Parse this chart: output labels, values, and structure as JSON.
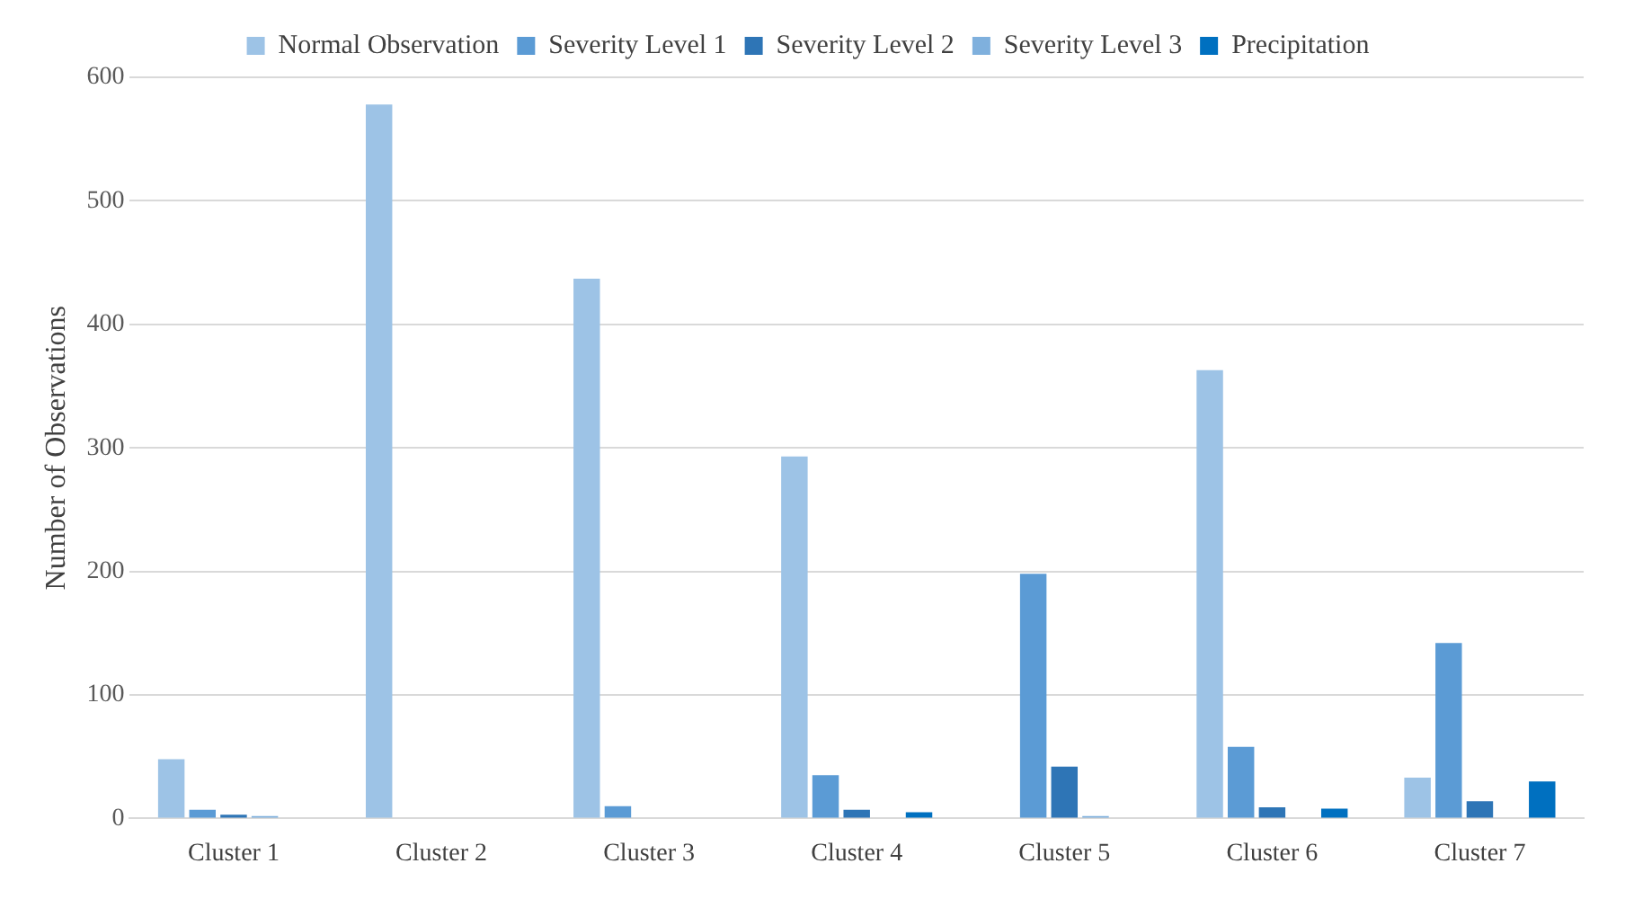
{
  "chart_data": {
    "type": "bar",
    "ylabel": "Number of Observations",
    "categories": [
      "Cluster 1",
      "Cluster 2",
      "Cluster 3",
      "Cluster 4",
      "Cluster 5",
      "Cluster 6",
      "Cluster 7"
    ],
    "series": [
      {
        "name": "Normal Observation",
        "color": "#9dc3e6",
        "values": [
          48,
          578,
          437,
          293,
          null,
          363,
          33
        ]
      },
      {
        "name": "Severity Level 1",
        "color": "#5b9bd5",
        "values": [
          7,
          null,
          10,
          35,
          198,
          58,
          142
        ]
      },
      {
        "name": "Severity Level 2",
        "color": "#2e75b6",
        "values": [
          3,
          null,
          null,
          7,
          42,
          9,
          14
        ]
      },
      {
        "name": "Severity Level 3",
        "color": "#7fb0dd",
        "values": [
          2,
          null,
          null,
          null,
          2,
          null,
          null
        ]
      },
      {
        "name": "Precipitation",
        "color": "#0070c0",
        "values": [
          null,
          null,
          null,
          5,
          null,
          8,
          30
        ]
      }
    ],
    "ylim": [
      0,
      600
    ],
    "yticks": [
      0,
      100,
      200,
      300,
      400,
      500,
      600
    ],
    "grid": "y",
    "legend": "top"
  }
}
